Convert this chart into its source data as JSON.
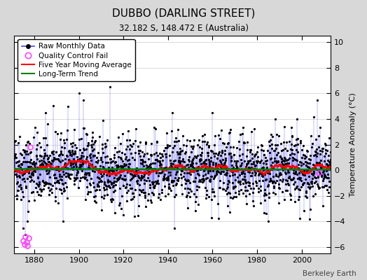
{
  "title": "DUBBO (DARLING STREET)",
  "subtitle": "32.182 S, 148.472 E (Australia)",
  "ylabel": "Temperature Anomaly (°C)",
  "credit": "Berkeley Earth",
  "year_start": 1871,
  "year_end": 2013,
  "ylim": [
    -6.5,
    10.5
  ],
  "yticks": [
    -6,
    -4,
    -2,
    0,
    2,
    4,
    6,
    8,
    10
  ],
  "xlim": [
    1871,
    2013
  ],
  "xticks": [
    1880,
    1900,
    1920,
    1940,
    1960,
    1980,
    2000
  ],
  "fig_bg_color": "#d8d8d8",
  "plot_bg_color": "#ffffff",
  "raw_line_color": "#4444ff",
  "raw_dot_color": "black",
  "qc_fail_color": "#ff44ff",
  "moving_avg_color": "red",
  "trend_color": "green",
  "seed": 42,
  "n_months": 1704
}
